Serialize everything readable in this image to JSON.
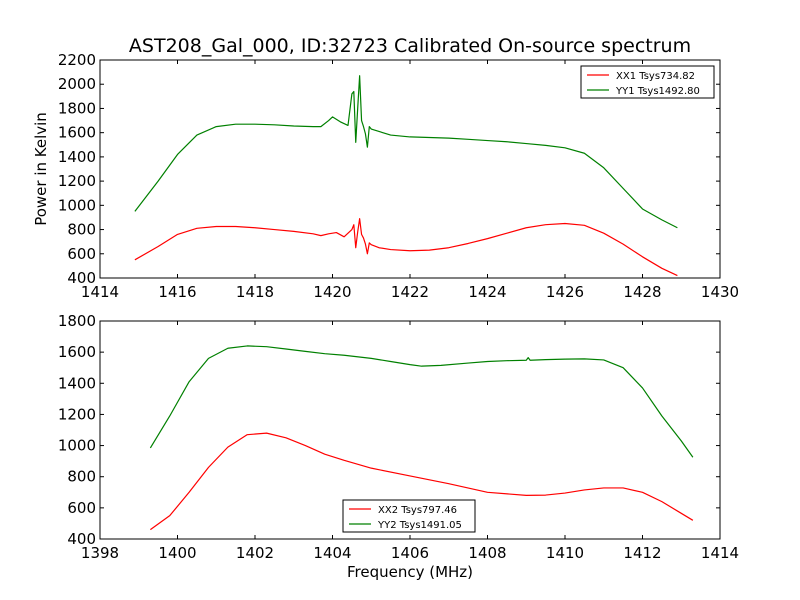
{
  "chart_data": [
    {
      "type": "line",
      "title": "AST208_Gal_000, ID:32723 Calibrated On-source spectrum",
      "xlabel": "",
      "ylabel": "Power in Kelvin",
      "xlim": [
        1414,
        1430
      ],
      "ylim": [
        400,
        2200
      ],
      "xticks": [
        1414,
        1416,
        1418,
        1420,
        1422,
        1424,
        1426,
        1428,
        1430
      ],
      "yticks": [
        400,
        600,
        800,
        1000,
        1200,
        1400,
        1600,
        1800,
        2000,
        2200
      ],
      "grid": false,
      "legend_position": "top-right",
      "series": [
        {
          "name": "XX1 Tsys734.82",
          "color": "#ff0000",
          "x": [
            1414.9,
            1415.5,
            1416.0,
            1416.5,
            1417.0,
            1417.5,
            1418.0,
            1418.5,
            1419.0,
            1419.5,
            1419.7,
            1419.9,
            1420.1,
            1420.3,
            1420.5,
            1420.55,
            1420.6,
            1420.65,
            1420.7,
            1420.75,
            1420.8,
            1420.85,
            1420.9,
            1420.95,
            1421.0,
            1421.2,
            1421.5,
            1422.0,
            1422.5,
            1423.0,
            1423.5,
            1424.0,
            1424.5,
            1425.0,
            1425.5,
            1426.0,
            1426.5,
            1427.0,
            1427.5,
            1428.0,
            1428.5,
            1428.9
          ],
          "y": [
            550,
            660,
            760,
            810,
            825,
            825,
            815,
            800,
            785,
            765,
            750,
            765,
            775,
            740,
            800,
            840,
            650,
            780,
            890,
            760,
            730,
            680,
            600,
            690,
            675,
            650,
            635,
            625,
            630,
            650,
            685,
            725,
            770,
            815,
            840,
            850,
            835,
            770,
            680,
            575,
            480,
            420
          ]
        },
        {
          "name": "YY1 Tsys1492.80",
          "color": "#008000",
          "x": [
            1414.9,
            1415.5,
            1416.0,
            1416.5,
            1417.0,
            1417.5,
            1418.0,
            1418.5,
            1419.0,
            1419.5,
            1419.7,
            1419.9,
            1420.0,
            1420.2,
            1420.4,
            1420.5,
            1420.55,
            1420.6,
            1420.65,
            1420.7,
            1420.75,
            1420.8,
            1420.85,
            1420.9,
            1420.95,
            1421.0,
            1421.2,
            1421.5,
            1422.0,
            1422.5,
            1423.0,
            1423.5,
            1424.0,
            1424.5,
            1425.0,
            1425.5,
            1426.0,
            1426.5,
            1427.0,
            1427.5,
            1428.0,
            1428.5,
            1428.9
          ],
          "y": [
            950,
            1200,
            1420,
            1580,
            1650,
            1670,
            1670,
            1665,
            1655,
            1650,
            1650,
            1700,
            1730,
            1690,
            1660,
            1920,
            1940,
            1520,
            1800,
            2070,
            1700,
            1650,
            1590,
            1480,
            1650,
            1630,
            1610,
            1580,
            1565,
            1560,
            1555,
            1545,
            1535,
            1525,
            1510,
            1495,
            1475,
            1430,
            1310,
            1140,
            970,
            880,
            815
          ]
        }
      ]
    },
    {
      "type": "line",
      "title": "",
      "xlabel": "Frequency (MHz)",
      "ylabel": "",
      "xlim": [
        1398,
        1414
      ],
      "ylim": [
        400,
        1800
      ],
      "xticks": [
        1398,
        1400,
        1402,
        1404,
        1406,
        1408,
        1410,
        1412,
        1414
      ],
      "yticks": [
        400,
        600,
        800,
        1000,
        1200,
        1400,
        1600,
        1800
      ],
      "grid": false,
      "legend_position": "bottom-center",
      "series": [
        {
          "name": "XX2 Tsys797.46",
          "color": "#ff0000",
          "x": [
            1399.3,
            1399.8,
            1400.3,
            1400.8,
            1401.3,
            1401.8,
            1402.3,
            1402.8,
            1403.3,
            1403.8,
            1404.3,
            1405.0,
            1406.0,
            1407.0,
            1408.0,
            1409.0,
            1409.5,
            1410.0,
            1410.5,
            1411.0,
            1411.5,
            1412.0,
            1412.5,
            1413.0,
            1413.3
          ],
          "y": [
            460,
            550,
            700,
            860,
            990,
            1070,
            1080,
            1050,
            1000,
            945,
            905,
            855,
            805,
            755,
            700,
            680,
            682,
            695,
            715,
            728,
            728,
            700,
            640,
            565,
            520
          ]
        },
        {
          "name": "YY2 Tsys1491.05",
          "color": "#008000",
          "x": [
            1399.3,
            1399.8,
            1400.3,
            1400.8,
            1401.3,
            1401.8,
            1402.3,
            1402.8,
            1403.3,
            1403.8,
            1404.3,
            1405.0,
            1405.5,
            1406.0,
            1406.3,
            1406.8,
            1407.5,
            1408.0,
            1408.5,
            1409.0,
            1409.05,
            1409.1,
            1409.5,
            1410.0,
            1410.5,
            1411.0,
            1411.5,
            1412.0,
            1412.5,
            1413.0,
            1413.3
          ],
          "y": [
            985,
            1190,
            1410,
            1560,
            1625,
            1640,
            1635,
            1620,
            1605,
            1590,
            1580,
            1560,
            1540,
            1520,
            1510,
            1515,
            1530,
            1540,
            1545,
            1548,
            1565,
            1548,
            1552,
            1555,
            1557,
            1550,
            1500,
            1370,
            1190,
            1030,
            925
          ]
        }
      ]
    }
  ]
}
